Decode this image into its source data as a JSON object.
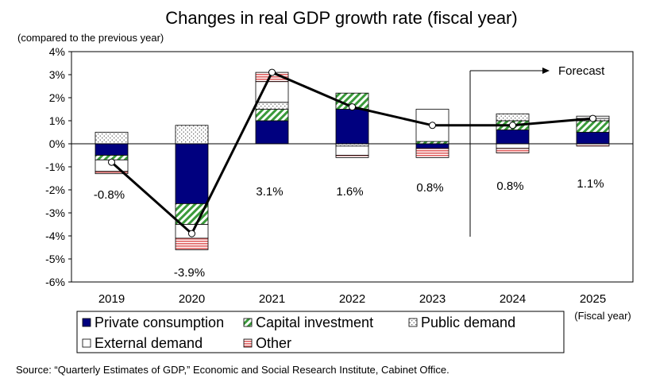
{
  "title": "Changes in real GDP growth rate (fiscal year)",
  "y_note": "(compared to the previous year)",
  "x_note": "(Fiscal year)",
  "forecast_label": "Forecast",
  "source": "Source: “Quarterly Estimates of GDP,” Economic and Social Research Institute, Cabinet Office.",
  "chart_data": {
    "type": "bar",
    "stacked": true,
    "categories": [
      "2019",
      "2020",
      "2021",
      "2022",
      "2023",
      "2024",
      "2025"
    ],
    "ylim": [
      -6,
      4
    ],
    "yticks": [
      4,
      3,
      2,
      1,
      0,
      -1,
      -2,
      -3,
      -4,
      -5,
      -6
    ],
    "ytick_labels": [
      "4%",
      "3%",
      "2%",
      "1%",
      "0%",
      "-1%",
      "-2%",
      "-3%",
      "-4%",
      "-5%",
      "-6%"
    ],
    "series": [
      {
        "name": "Private consumption",
        "key": "private",
        "color": "#00007f",
        "values": [
          -0.5,
          -2.6,
          1.0,
          1.5,
          -0.2,
          0.6,
          0.5
        ]
      },
      {
        "name": "Capital investment",
        "key": "capital",
        "color": "#3a9a3a",
        "values": [
          -0.2,
          -0.9,
          0.5,
          0.7,
          0.1,
          0.4,
          0.5
        ]
      },
      {
        "name": "Public demand",
        "key": "public",
        "color": "#777777",
        "values": [
          0.5,
          0.8,
          0.3,
          -0.1,
          0.0,
          0.3,
          0.1
        ]
      },
      {
        "name": "External demand",
        "key": "external",
        "color": "#000000",
        "values": [
          -0.5,
          -0.6,
          0.9,
          -0.4,
          1.4,
          -0.2,
          0.1
        ]
      },
      {
        "name": "Other",
        "key": "other",
        "color": "#e06060",
        "values": [
          -0.1,
          -0.5,
          0.4,
          -0.1,
          -0.4,
          -0.2,
          -0.1
        ]
      }
    ],
    "total": {
      "name": "",
      "values": [
        -0.8,
        -3.9,
        3.1,
        1.6,
        0.8,
        0.8,
        1.1
      ]
    },
    "total_labels": [
      "-0.8%",
      "-3.9%",
      "3.1%",
      "1.6%",
      "0.8%",
      "0.8%",
      "1.1%"
    ],
    "forecast_from": "2024",
    "legend_position": "bottom"
  }
}
